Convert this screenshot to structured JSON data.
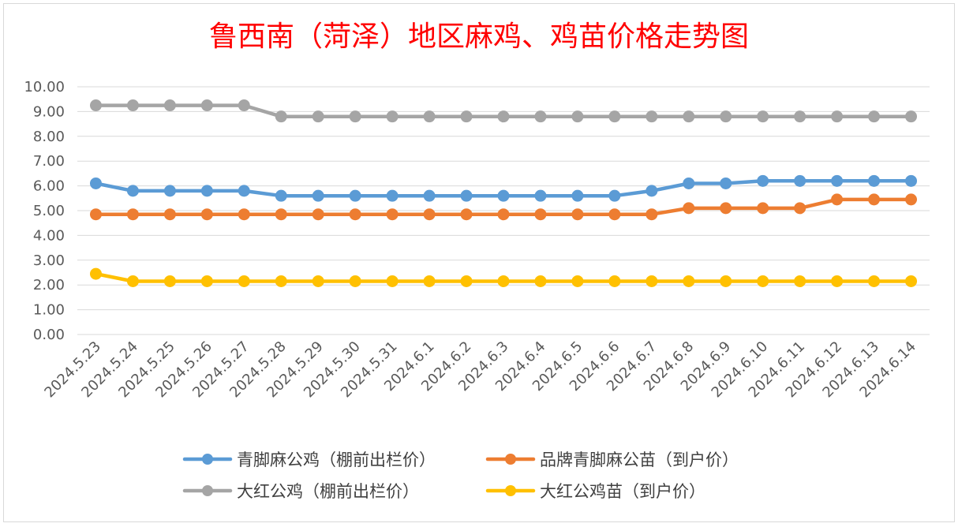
{
  "chart_data": {
    "type": "line",
    "title": "鲁西南（菏泽）地区麻鸡、鸡苗价格走势图",
    "xlabel": "",
    "ylabel": "",
    "ylim": [
      0,
      10
    ],
    "y_ticks": [
      "0.00",
      "1.00",
      "2.00",
      "3.00",
      "4.00",
      "5.00",
      "6.00",
      "7.00",
      "8.00",
      "9.00",
      "10.00"
    ],
    "grid": true,
    "legend_position": "bottom",
    "categories": [
      "2024.5.23",
      "2024.5.24",
      "2024.5.25",
      "2024.5.26",
      "2024.5.27",
      "2024.5.28",
      "2024.5.29",
      "2024.5.30",
      "2024.5.31",
      "2024.6.1",
      "2024.6.2",
      "2024.6.3",
      "2024.6.4",
      "2024.6.5",
      "2024.6.6",
      "2024.6.7",
      "2024.6.8",
      "2024.6.9",
      "2024.6.10",
      "2024.6.11",
      "2024.6.12",
      "2024.6.13",
      "2024.6.14"
    ],
    "series": [
      {
        "name": "青脚麻公鸡（棚前出栏价）",
        "color": "#5b9bd5",
        "values": [
          6.1,
          5.8,
          5.8,
          5.8,
          5.8,
          5.6,
          5.6,
          5.6,
          5.6,
          5.6,
          5.6,
          5.6,
          5.6,
          5.6,
          5.6,
          5.8,
          6.1,
          6.1,
          6.2,
          6.2,
          6.2,
          6.2,
          6.2
        ]
      },
      {
        "name": "品牌青脚麻公苗（到户价）",
        "color": "#ed7d31",
        "values": [
          4.85,
          4.85,
          4.85,
          4.85,
          4.85,
          4.85,
          4.85,
          4.85,
          4.85,
          4.85,
          4.85,
          4.85,
          4.85,
          4.85,
          4.85,
          4.85,
          5.1,
          5.1,
          5.1,
          5.1,
          5.45,
          5.45,
          5.45
        ]
      },
      {
        "name": "大红公鸡（棚前出栏价）",
        "color": "#a5a5a5",
        "values": [
          9.25,
          9.25,
          9.25,
          9.25,
          9.25,
          8.8,
          8.8,
          8.8,
          8.8,
          8.8,
          8.8,
          8.8,
          8.8,
          8.8,
          8.8,
          8.8,
          8.8,
          8.8,
          8.8,
          8.8,
          8.8,
          8.8,
          8.8
        ]
      },
      {
        "name": "大红公鸡苗（到户价）",
        "color": "#ffc000",
        "values": [
          2.45,
          2.15,
          2.15,
          2.15,
          2.15,
          2.15,
          2.15,
          2.15,
          2.15,
          2.15,
          2.15,
          2.15,
          2.15,
          2.15,
          2.15,
          2.15,
          2.15,
          2.15,
          2.15,
          2.15,
          2.15,
          2.15,
          2.15
        ]
      }
    ]
  }
}
